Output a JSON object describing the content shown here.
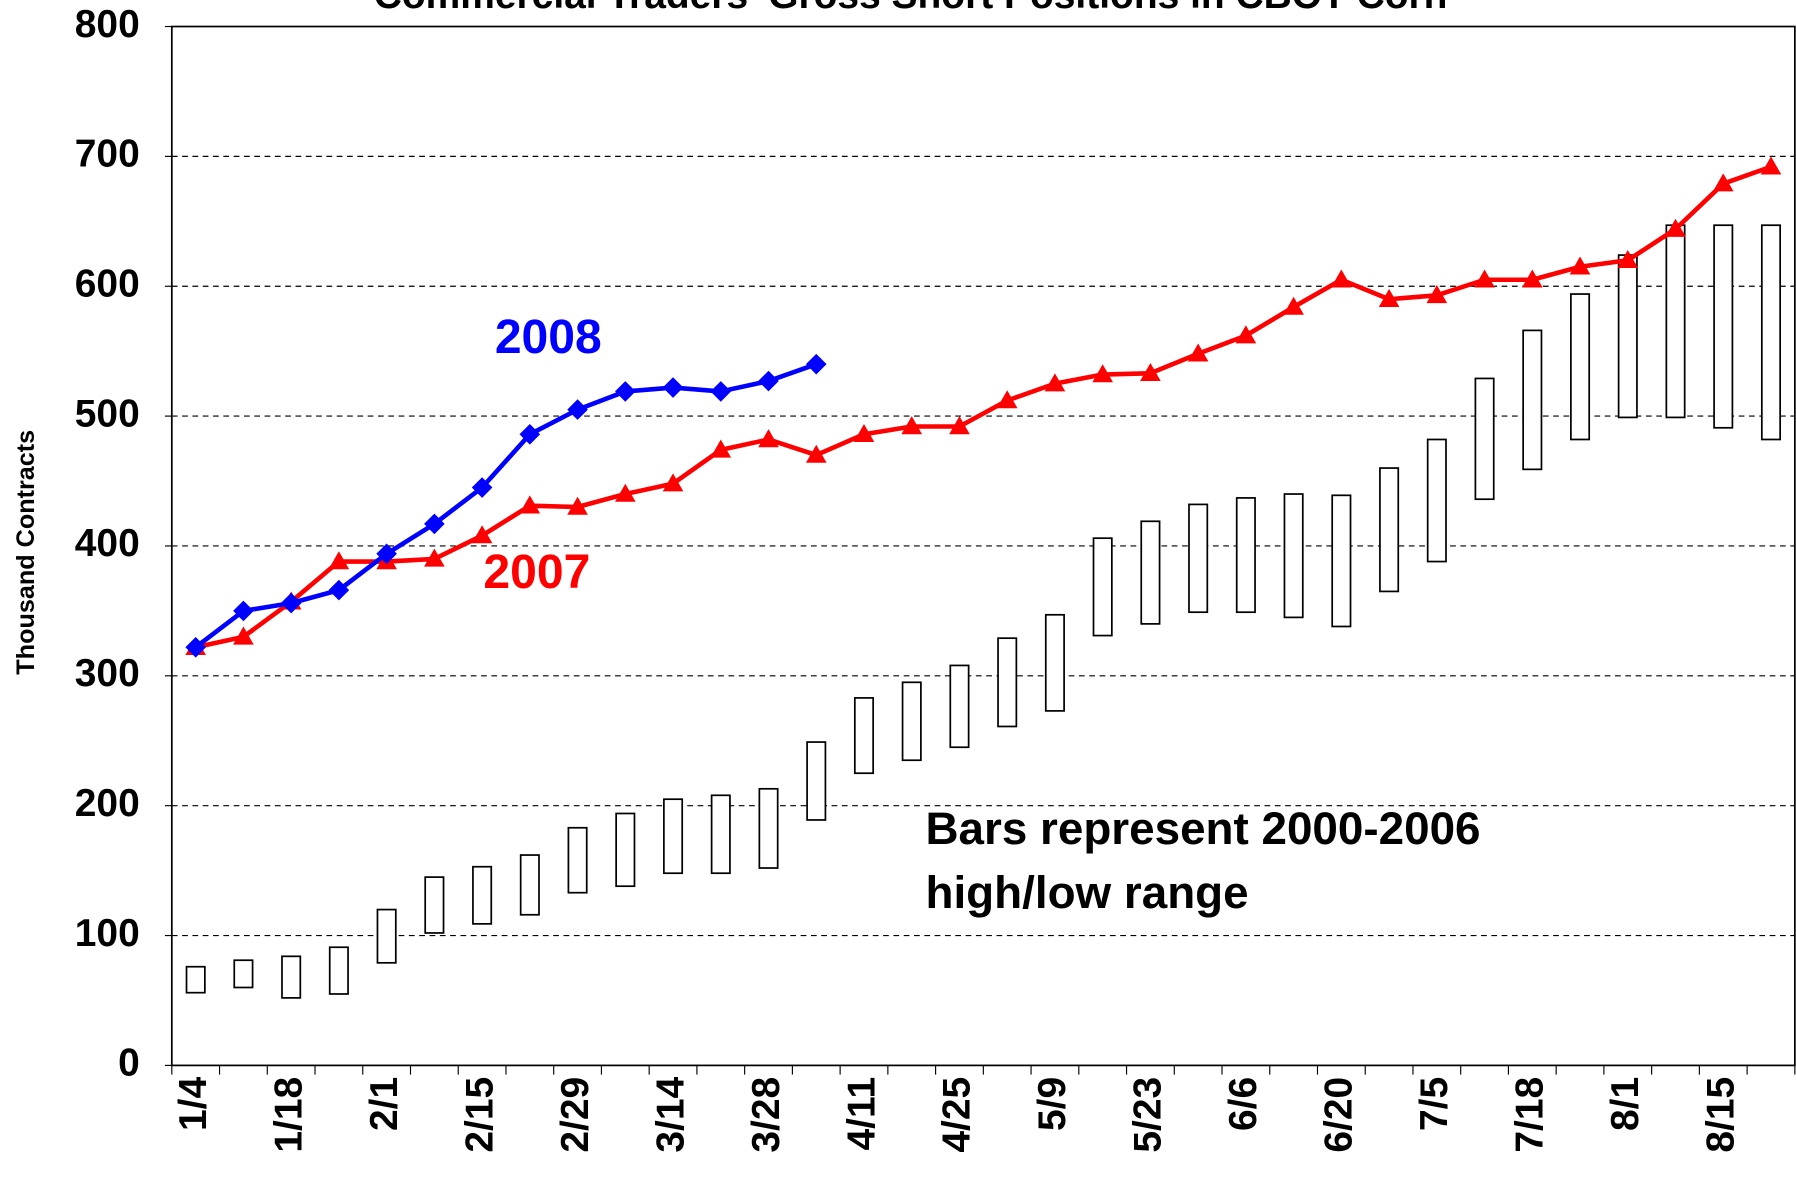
{
  "chart_data": {
    "type": "line",
    "title": "Commercial Traders' Gross Short Positions in CBOT Corn",
    "y_label": "Thousand Contracts",
    "categories": [
      "1/4",
      null,
      "1/18",
      null,
      "2/1",
      null,
      "2/15",
      null,
      "2/29",
      null,
      "3/14",
      null,
      "3/28",
      null,
      "4/11",
      null,
      "4/25",
      null,
      "5/9",
      null,
      "5/23",
      null,
      "6/6",
      null,
      "6/20",
      null,
      "7/5",
      null,
      "7/18",
      null,
      "8/1",
      null,
      "8/15",
      null
    ],
    "series": [
      {
        "name": "2008",
        "color": "#0000ff",
        "marker": "diamond",
        "values": [
          322,
          350,
          356,
          366,
          394,
          417,
          445,
          486,
          505,
          519,
          522,
          519,
          527,
          540,
          null,
          null,
          null,
          null,
          null,
          null,
          null,
          null,
          null,
          null,
          null,
          null,
          null,
          null,
          null,
          null,
          null,
          null,
          null,
          null
        ]
      },
      {
        "name": "2007",
        "color": "#ff0000",
        "marker": "triangle",
        "values": [
          322,
          330,
          357,
          388,
          388,
          390,
          408,
          431,
          430,
          440,
          448,
          474,
          482,
          470,
          486,
          492,
          492,
          512,
          525,
          532,
          533,
          548,
          562,
          584,
          605,
          590,
          593,
          605,
          605,
          615,
          620,
          644,
          679,
          692
        ]
      }
    ],
    "range_high": [
      76,
      81,
      84,
      91,
      120,
      145,
      153,
      162,
      183,
      194,
      205,
      208,
      213,
      249,
      283,
      295,
      308,
      329,
      347,
      406,
      419,
      432,
      437,
      440,
      439,
      460,
      482,
      529,
      566,
      594,
      624,
      647,
      647,
      647
    ],
    "range_low": [
      56,
      60,
      52,
      55,
      79,
      102,
      109,
      116,
      133,
      138,
      148,
      148,
      152,
      189,
      225,
      235,
      245,
      261,
      273,
      331,
      340,
      349,
      349,
      345,
      338,
      365,
      388,
      436,
      459,
      482,
      499,
      499,
      491,
      482
    ],
    "range_note": [
      "Bars represent 2000-2006",
      "high/low range"
    ],
    "ylim": [
      0,
      800
    ],
    "yticks": [
      0,
      100,
      200,
      300,
      400,
      500,
      600,
      700,
      800
    ],
    "grid": true
  }
}
